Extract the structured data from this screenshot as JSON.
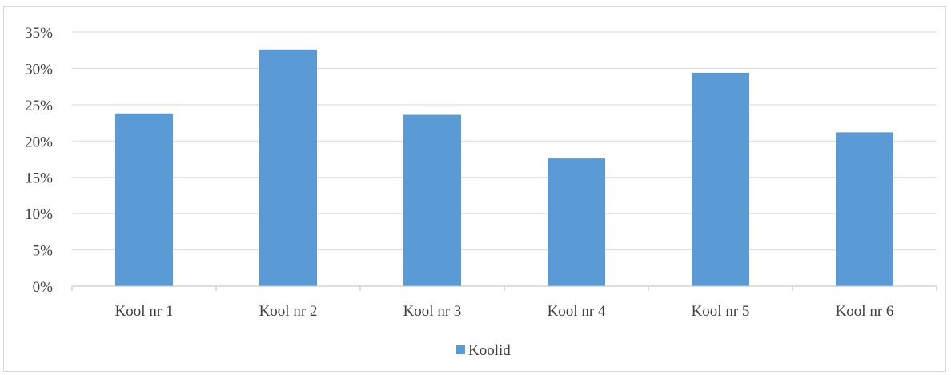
{
  "chart_data": {
    "type": "bar",
    "title": "",
    "xlabel": "",
    "ylabel": "",
    "categories": [
      "Kool nr 1",
      "Kool nr 2",
      "Kool nr 3",
      "Kool nr 4",
      "Kool nr 5",
      "Kool nr 6"
    ],
    "series": [
      {
        "name": "Koolid",
        "values": [
          23.8,
          32.6,
          23.6,
          17.6,
          29.4,
          21.2
        ]
      }
    ],
    "ylim": [
      0,
      35
    ],
    "yticks": [
      0,
      5,
      10,
      15,
      20,
      25,
      30,
      35
    ],
    "ytick_labels": [
      "0%",
      "5%",
      "10%",
      "15%",
      "20%",
      "25%",
      "30%",
      "35%"
    ],
    "unit": "%",
    "grid": true,
    "legend_position": "bottom",
    "colors": {
      "bar": "#5b9bd5",
      "grid": "#d9d9d9",
      "axis": "#bfbfbf",
      "text": "#404040"
    }
  }
}
